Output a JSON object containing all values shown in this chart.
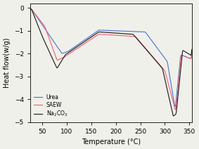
{
  "title": "",
  "xlabel": "Temperature (°C)",
  "ylabel": "Heat flow(w/g)",
  "xlim": [
    25,
    355
  ],
  "ylim": [
    -5,
    0.2
  ],
  "xticks": [
    50,
    100,
    150,
    200,
    250,
    300,
    350
  ],
  "yticks": [
    0,
    -1,
    -2,
    -3,
    -4,
    -5
  ],
  "legend": [
    "Urea",
    "SAEW",
    "Na₂CO₃"
  ],
  "colors": [
    "#5577CC",
    "#EE6677",
    "#222222"
  ],
  "background": "#f0f0ea",
  "figsize": [
    2.83,
    2.12
  ],
  "dpi": 100,
  "linewidth": 0.85
}
